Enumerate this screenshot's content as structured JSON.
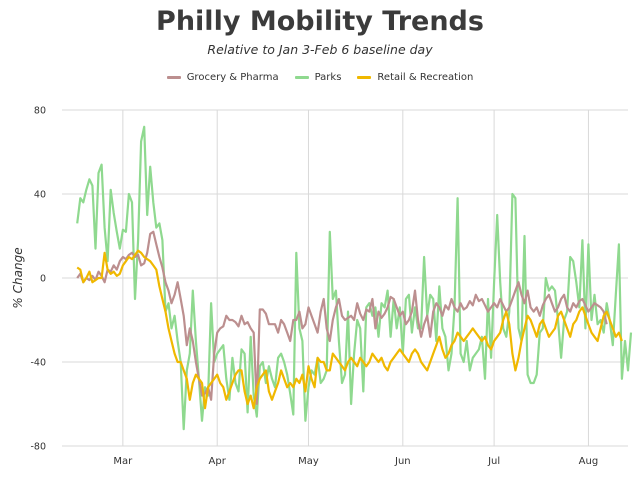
{
  "chart_data": {
    "type": "line",
    "title": "Philly Mobility Trends",
    "subtitle": "Relative to Jan 3-Feb 6 baseline day",
    "ylabel": "% Change",
    "xlabel": "",
    "ylim": [
      -80,
      80
    ],
    "yticks": [
      -80,
      -40,
      0,
      40,
      80
    ],
    "xlim": [
      "2020-02-10",
      "2020-08-14"
    ],
    "xticks": [
      {
        "date": "2020-03-01",
        "label": "Mar"
      },
      {
        "date": "2020-04-01",
        "label": "Apr"
      },
      {
        "date": "2020-05-01",
        "label": "May"
      },
      {
        "date": "2020-06-01",
        "label": "Jun"
      },
      {
        "date": "2020-07-01",
        "label": "Jul"
      },
      {
        "date": "2020-08-01",
        "label": "Aug"
      }
    ],
    "grid": true,
    "legend_position": "top",
    "series": [
      {
        "name": "Grocery & Pharma",
        "color": "#bc8f8f",
        "values": [
          0,
          2,
          -2,
          0,
          -1,
          1,
          -1,
          3,
          1,
          -2,
          4,
          3,
          6,
          4,
          8,
          10,
          9,
          11,
          12,
          10,
          11,
          6,
          7,
          12,
          21,
          22,
          16,
          10,
          5,
          -2,
          -6,
          -12,
          -8,
          -2,
          -10,
          -18,
          -32,
          -24,
          -30,
          -40,
          -48,
          -56,
          -55,
          -52,
          -58,
          -36,
          -26,
          -24,
          -23,
          -18,
          -20,
          -20,
          -21,
          -23,
          -18,
          -22,
          -21,
          -24,
          -26,
          -60,
          -15,
          -15,
          -17,
          -22,
          -22,
          -22,
          -26,
          -20,
          -22,
          -26,
          -30,
          -20,
          -20,
          -16,
          -24,
          -22,
          -14,
          -18,
          -22,
          -26,
          -16,
          -10,
          -24,
          -30,
          -20,
          -14,
          -10,
          -18,
          -20,
          -19,
          -18,
          -20,
          -12,
          -17,
          -20,
          -15,
          -16,
          -10,
          -24,
          -16,
          -19,
          -17,
          -14,
          -9,
          -10,
          -14,
          -18,
          -16,
          -22,
          -20,
          -16,
          -6,
          -20,
          -28,
          -22,
          -18,
          -28,
          -16,
          -12,
          -14,
          -18,
          -13,
          -15,
          -10,
          -14,
          -16,
          -12,
          -15,
          -14,
          -11,
          -13,
          -8,
          -11,
          -10,
          -13,
          -16,
          -14,
          -12,
          -14,
          -10,
          -13,
          -16,
          -14,
          -10,
          -6,
          -2,
          -8,
          -12,
          -6,
          -14,
          -16,
          -14,
          -18,
          -13,
          -10,
          -8,
          -12,
          -16,
          -14,
          -10,
          -8,
          -14,
          -16,
          -12,
          -14,
          -11,
          -10,
          -13,
          -16,
          -14,
          -12,
          -13,
          -14,
          -16,
          -22
        ],
        "start": "2020-02-15"
      },
      {
        "name": "Parks",
        "color": "#8fd98f",
        "values": [
          26,
          38,
          36,
          42,
          47,
          44,
          14,
          50,
          54,
          24,
          8,
          42,
          31,
          22,
          14,
          23,
          22,
          40,
          36,
          -10,
          18,
          65,
          72,
          30,
          53,
          36,
          24,
          26,
          18,
          -16,
          -12,
          -24,
          -18,
          -30,
          -40,
          -72,
          -44,
          -36,
          -6,
          -30,
          -48,
          -68,
          -52,
          -56,
          -12,
          -40,
          -36,
          -34,
          -32,
          -48,
          -58,
          -38,
          -50,
          -54,
          -34,
          -36,
          -64,
          -28,
          -56,
          -66,
          -42,
          -40,
          -50,
          -42,
          -48,
          -52,
          -38,
          -36,
          -40,
          -46,
          -55,
          -65,
          12,
          -24,
          -30,
          -68,
          -52,
          -44,
          -46,
          -38,
          -50,
          -48,
          -44,
          22,
          -10,
          -6,
          -30,
          -50,
          -46,
          -16,
          -60,
          -36,
          -20,
          -24,
          -54,
          -14,
          -12,
          -18,
          -14,
          -28,
          -12,
          -14,
          -6,
          -28,
          -10,
          -24,
          -14,
          -36,
          -10,
          -8,
          -26,
          -14,
          -24,
          -24,
          10,
          -18,
          -8,
          -10,
          -30,
          -4,
          -24,
          -28,
          -44,
          -36,
          -14,
          38,
          -36,
          -40,
          -30,
          -44,
          -38,
          -36,
          -34,
          -28,
          -48,
          -10,
          -38,
          -2,
          30,
          -2,
          -24,
          -28,
          -16,
          40,
          38,
          -24,
          -30,
          20,
          -46,
          -50,
          -50,
          -46,
          -26,
          -24,
          0,
          -6,
          -4,
          -6,
          -20,
          -38,
          -20,
          -16,
          10,
          8,
          -2,
          -14,
          18,
          -24,
          16,
          -20,
          -8,
          -22,
          -20,
          -26,
          -12,
          -20,
          -32,
          -8,
          16,
          -48,
          -30,
          -44,
          -26
        ],
        "start": "2020-02-15"
      },
      {
        "name": "Retail & Recreation",
        "color": "#f0b800",
        "values": [
          5,
          4,
          -2,
          0,
          3,
          -2,
          -1,
          0,
          0,
          12,
          4,
          2,
          3,
          1,
          2,
          6,
          8,
          10,
          9,
          11,
          13,
          12,
          10,
          9,
          8,
          6,
          4,
          -4,
          -10,
          -16,
          -24,
          -30,
          -36,
          -40,
          -40,
          -44,
          -48,
          -58,
          -50,
          -46,
          -48,
          -50,
          -62,
          -52,
          -50,
          -48,
          -46,
          -50,
          -52,
          -58,
          -54,
          -50,
          -46,
          -44,
          -44,
          -54,
          -60,
          -56,
          -62,
          -52,
          -48,
          -46,
          -44,
          -54,
          -58,
          -54,
          -50,
          -44,
          -48,
          -52,
          -50,
          -52,
          -48,
          -50,
          -46,
          -54,
          -42,
          -48,
          -52,
          -38,
          -40,
          -40,
          -44,
          -44,
          -36,
          -38,
          -40,
          -42,
          -44,
          -40,
          -38,
          -40,
          -42,
          -38,
          -40,
          -42,
          -40,
          -36,
          -38,
          -40,
          -38,
          -42,
          -44,
          -40,
          -38,
          -36,
          -34,
          -36,
          -38,
          -40,
          -36,
          -34,
          -36,
          -40,
          -42,
          -44,
          -40,
          -36,
          -32,
          -28,
          -34,
          -38,
          -36,
          -32,
          -30,
          -26,
          -28,
          -30,
          -28,
          -26,
          -24,
          -26,
          -28,
          -30,
          -28,
          -32,
          -34,
          -30,
          -28,
          -26,
          -20,
          -16,
          -22,
          -36,
          -44,
          -38,
          -30,
          -24,
          -18,
          -20,
          -24,
          -28,
          -22,
          -20,
          -24,
          -28,
          -26,
          -24,
          -18,
          -16,
          -20,
          -24,
          -28,
          -22,
          -20,
          -16,
          -14,
          -18,
          -22,
          -26,
          -28,
          -30,
          -24,
          -18,
          -16,
          -20,
          -24,
          -28,
          -26,
          -30
        ],
        "start": "2020-02-15"
      }
    ]
  }
}
